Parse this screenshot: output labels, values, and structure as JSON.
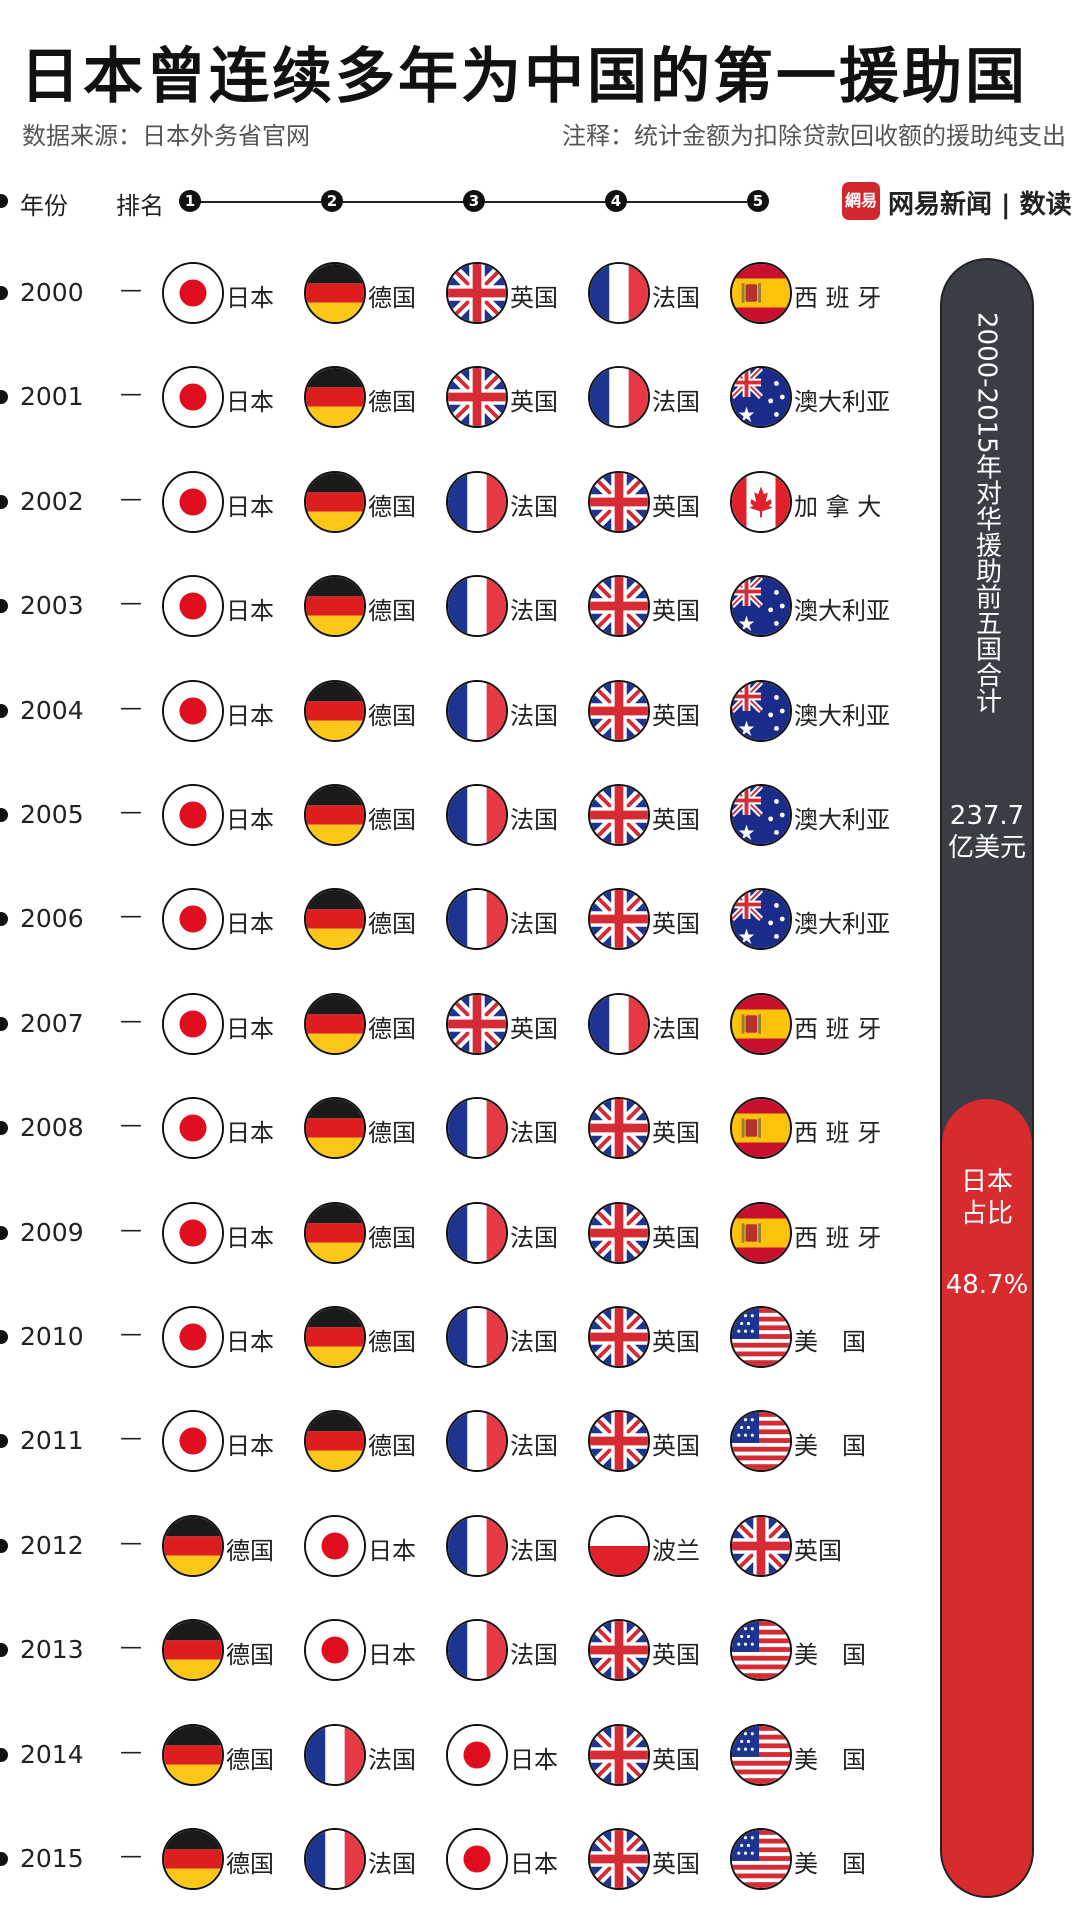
{
  "title": "日本曾连续多年为中国的第一援助国",
  "source": "数据来源：日本外务省官网",
  "note": "注释：统计金额为扣除贷款回收额的援助纯支出",
  "header": {
    "year_label": "年份",
    "rank_label": "排名",
    "ranks": [
      "1",
      "2",
      "3",
      "4",
      "5"
    ]
  },
  "logo": {
    "icon_text": "網易",
    "text": "网易新闻 | 数读"
  },
  "dash": "—",
  "names": {
    "JP": "日本",
    "DE": "德国",
    "GB": "英国",
    "FR": "法国",
    "ES": "西 班 牙",
    "AU": "澳大利亚",
    "CA": "加 拿 大",
    "US": "美　国",
    "PL": "波兰"
  },
  "chart_data": {
    "type": "table",
    "title": "日本曾连续多年为中国的第一援助国",
    "columns": [
      "年份",
      "1",
      "2",
      "3",
      "4",
      "5"
    ],
    "rows": [
      {
        "year": "2000",
        "ranking": [
          "JP",
          "DE",
          "GB",
          "FR",
          "ES"
        ]
      },
      {
        "year": "2001",
        "ranking": [
          "JP",
          "DE",
          "GB",
          "FR",
          "AU"
        ]
      },
      {
        "year": "2002",
        "ranking": [
          "JP",
          "DE",
          "FR",
          "GB",
          "CA"
        ]
      },
      {
        "year": "2003",
        "ranking": [
          "JP",
          "DE",
          "FR",
          "GB",
          "AU"
        ]
      },
      {
        "year": "2004",
        "ranking": [
          "JP",
          "DE",
          "FR",
          "GB",
          "AU"
        ]
      },
      {
        "year": "2005",
        "ranking": [
          "JP",
          "DE",
          "FR",
          "GB",
          "AU"
        ]
      },
      {
        "year": "2006",
        "ranking": [
          "JP",
          "DE",
          "FR",
          "GB",
          "AU"
        ]
      },
      {
        "year": "2007",
        "ranking": [
          "JP",
          "DE",
          "GB",
          "FR",
          "ES"
        ]
      },
      {
        "year": "2008",
        "ranking": [
          "JP",
          "DE",
          "FR",
          "GB",
          "ES"
        ]
      },
      {
        "year": "2009",
        "ranking": [
          "JP",
          "DE",
          "FR",
          "GB",
          "ES"
        ]
      },
      {
        "year": "2010",
        "ranking": [
          "JP",
          "DE",
          "FR",
          "GB",
          "US"
        ]
      },
      {
        "year": "2011",
        "ranking": [
          "JP",
          "DE",
          "FR",
          "GB",
          "US"
        ]
      },
      {
        "year": "2012",
        "ranking": [
          "DE",
          "JP",
          "FR",
          "PL",
          "GB"
        ]
      },
      {
        "year": "2013",
        "ranking": [
          "DE",
          "JP",
          "FR",
          "GB",
          "US"
        ]
      },
      {
        "year": "2014",
        "ranking": [
          "DE",
          "FR",
          "JP",
          "GB",
          "US"
        ]
      },
      {
        "year": "2015",
        "ranking": [
          "DE",
          "FR",
          "JP",
          "GB",
          "US"
        ]
      }
    ],
    "summary": {
      "label": "2000-2015年对华援助前五国合计",
      "total_line1": "237.7",
      "total_line2": "亿美元",
      "japan_label_line1": "日本",
      "japan_label_line2": "占比",
      "japan_share_text": "48.7%",
      "japan_share": 0.487
    }
  },
  "colors": {
    "accent_red": "#d72b2e",
    "bar_dark": "#3a3d44"
  }
}
